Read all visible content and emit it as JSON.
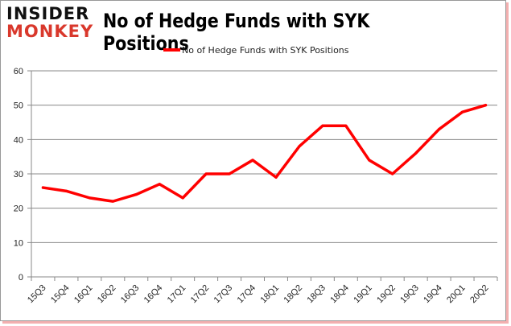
{
  "logo": {
    "line1": "INSIDER",
    "line2": "MONKEY"
  },
  "chart_data": {
    "type": "line",
    "title": "No of Hedge Funds with SYK Positions",
    "categories": [
      "15Q3",
      "15Q4",
      "16Q1",
      "16Q2",
      "16Q3",
      "16Q4",
      "17Q1",
      "17Q2",
      "17Q3",
      "17Q4",
      "18Q1",
      "18Q2",
      "18Q3",
      "18Q4",
      "19Q1",
      "19Q2",
      "19Q3",
      "19Q4",
      "20Q1",
      "20Q2"
    ],
    "series": [
      {
        "name": "No of Hedge Funds with SYK Positions",
        "color": "#ff0000",
        "values": [
          26,
          25,
          23,
          22,
          24,
          27,
          23,
          30,
          30,
          34,
          29,
          38,
          44,
          44,
          34,
          30,
          36,
          43,
          48,
          50
        ]
      }
    ],
    "ylim": [
      0,
      60
    ],
    "yticks": [
      0,
      10,
      20,
      30,
      40,
      50,
      60
    ],
    "grid": true,
    "legend": "top-center"
  }
}
